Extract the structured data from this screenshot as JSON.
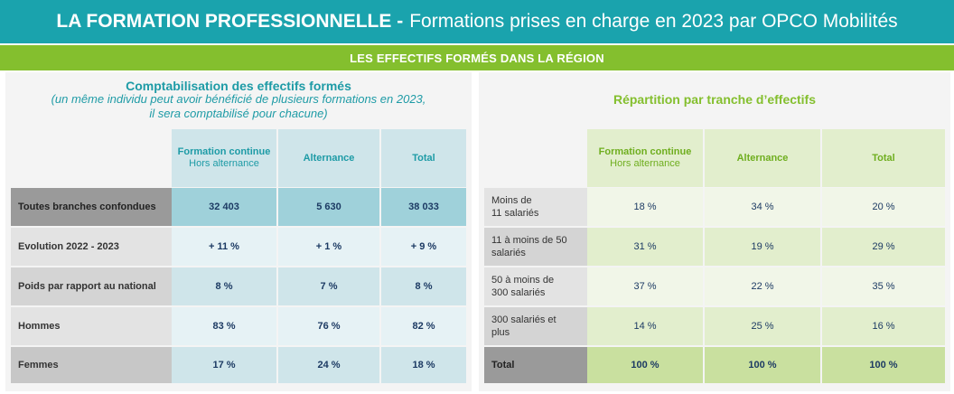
{
  "header": {
    "title_bold": "LA FORMATION PROFESSIONNELLE -",
    "title_rest": "Formations prises en charge en 2023 par OPCO Mobilités"
  },
  "section_title": "LES EFFECTIFS FORMÉS DANS LA RÉGION",
  "left": {
    "title": "Comptabilisation des effectifs formés",
    "note_line1": "(un même individu peut avoir bénéficié de plusieurs formations en 2023,",
    "note_line2": "il sera comptabilisé pour chacune)",
    "columns": [
      {
        "label": "Formation continue",
        "sublabel": "Hors alternance"
      },
      {
        "label": "Alternance",
        "sublabel": ""
      },
      {
        "label": "Total",
        "sublabel": ""
      }
    ],
    "rows": [
      {
        "label": "Toutes branches confondues",
        "values": [
          "32 403",
          "5 630",
          "38 033"
        ]
      },
      {
        "label": "Evolution 2022 - 2023",
        "values": [
          "+ 11 %",
          "+ 1 %",
          "+ 9 %"
        ]
      },
      {
        "label": "Poids par rapport au national",
        "values": [
          "8 %",
          "7 %",
          "8 %"
        ]
      },
      {
        "label": "Hommes",
        "values": [
          "83 %",
          "76 %",
          "82 %"
        ]
      },
      {
        "label": "Femmes",
        "values": [
          "17 %",
          "24 %",
          "18 %"
        ]
      }
    ]
  },
  "right": {
    "title": "Répartition par tranche d’effectifs",
    "columns": [
      {
        "label": "Formation continue",
        "sublabel": "Hors alternance"
      },
      {
        "label": "Alternance",
        "sublabel": ""
      },
      {
        "label": "Total",
        "sublabel": ""
      }
    ],
    "rows": [
      {
        "label_line1": "Moins de",
        "label_line2": "11 salariés",
        "values": [
          "18 %",
          "34 %",
          "20 %"
        ]
      },
      {
        "label_line1": "11 à moins de 50",
        "label_line2": "salariés",
        "values": [
          "31 %",
          "19 %",
          "29 %"
        ]
      },
      {
        "label_line1": "50 à moins de",
        "label_line2": "300 salariés",
        "values": [
          "37 %",
          "22 %",
          "35 %"
        ]
      },
      {
        "label_line1": "300 salariés et",
        "label_line2": "plus",
        "values": [
          "14 %",
          "25 %",
          "16 %"
        ]
      },
      {
        "label_line1": "Total",
        "label_line2": "",
        "values": [
          "100 %",
          "100 %",
          "100 %"
        ]
      }
    ]
  }
}
